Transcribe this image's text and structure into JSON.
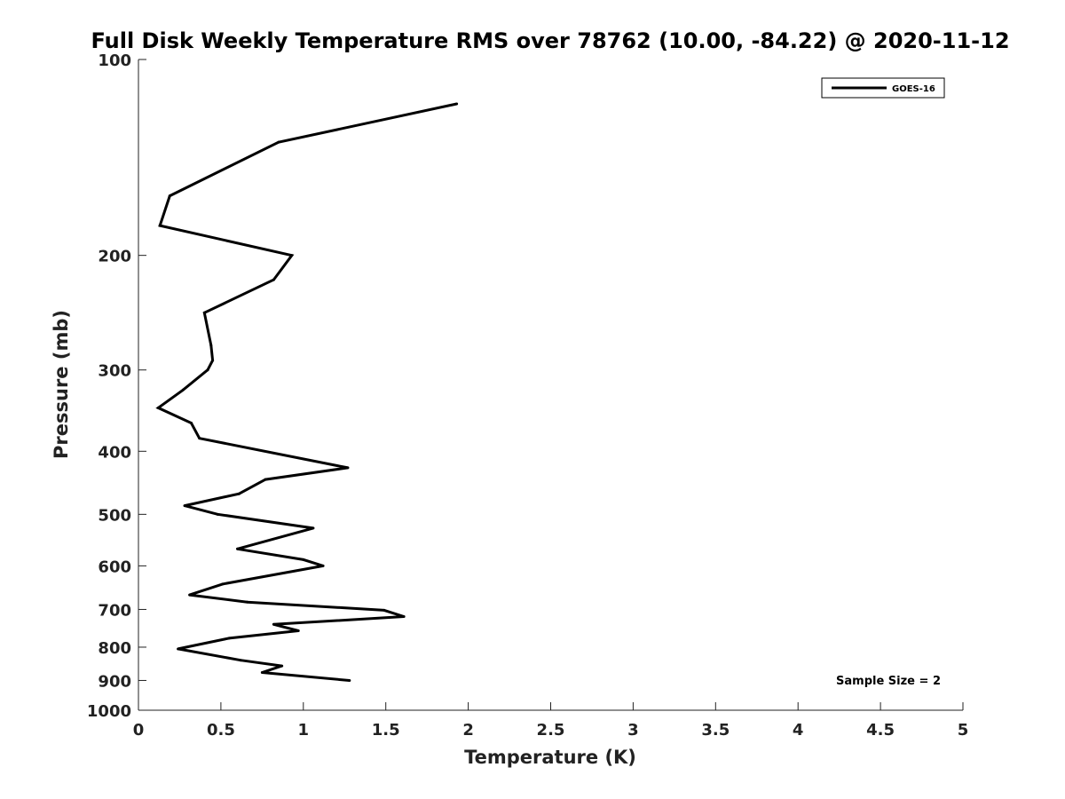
{
  "chart_data": {
    "type": "line",
    "title": "Full Disk Weekly Temperature RMS over 78762 (10.00, -84.22) @ 2020-11-12",
    "xlabel": "Temperature (K)",
    "ylabel": "Pressure (mb)",
    "xlim": [
      0,
      5
    ],
    "ylim": [
      1000,
      100
    ],
    "y_scale": "log",
    "y_inverted": true,
    "grid": false,
    "legend_placement": "top-right",
    "x_ticks": [
      "0",
      "0.5",
      "1",
      "1.5",
      "2",
      "2.5",
      "3",
      "3.5",
      "4",
      "4.5",
      "5"
    ],
    "y_ticks": [
      "100",
      "200",
      "300",
      "400",
      "500",
      "600",
      "700",
      "800",
      "900",
      "1000"
    ],
    "series": [
      {
        "name": "GOES-16",
        "color": "#000000",
        "points": [
          {
            "x": 1.93,
            "y": 117
          },
          {
            "x": 0.85,
            "y": 134
          },
          {
            "x": 0.19,
            "y": 162
          },
          {
            "x": 0.13,
            "y": 180
          },
          {
            "x": 0.93,
            "y": 200
          },
          {
            "x": 0.82,
            "y": 218
          },
          {
            "x": 0.4,
            "y": 245
          },
          {
            "x": 0.44,
            "y": 275
          },
          {
            "x": 0.45,
            "y": 290
          },
          {
            "x": 0.42,
            "y": 300
          },
          {
            "x": 0.27,
            "y": 322
          },
          {
            "x": 0.12,
            "y": 343
          },
          {
            "x": 0.32,
            "y": 362
          },
          {
            "x": 0.37,
            "y": 382
          },
          {
            "x": 1.27,
            "y": 424
          },
          {
            "x": 0.77,
            "y": 442
          },
          {
            "x": 0.61,
            "y": 465
          },
          {
            "x": 0.28,
            "y": 485
          },
          {
            "x": 0.48,
            "y": 500
          },
          {
            "x": 1.06,
            "y": 525
          },
          {
            "x": 0.6,
            "y": 565
          },
          {
            "x": 1.0,
            "y": 587
          },
          {
            "x": 1.12,
            "y": 600
          },
          {
            "x": 0.51,
            "y": 640
          },
          {
            "x": 0.31,
            "y": 665
          },
          {
            "x": 0.66,
            "y": 682
          },
          {
            "x": 1.49,
            "y": 702
          },
          {
            "x": 1.61,
            "y": 718
          },
          {
            "x": 0.82,
            "y": 738
          },
          {
            "x": 0.97,
            "y": 755
          },
          {
            "x": 0.55,
            "y": 775
          },
          {
            "x": 0.24,
            "y": 805
          },
          {
            "x": 0.62,
            "y": 838
          },
          {
            "x": 0.87,
            "y": 855
          },
          {
            "x": 0.75,
            "y": 875
          },
          {
            "x": 1.28,
            "y": 900
          }
        ]
      }
    ],
    "annotation": "Sample Size = 2"
  }
}
